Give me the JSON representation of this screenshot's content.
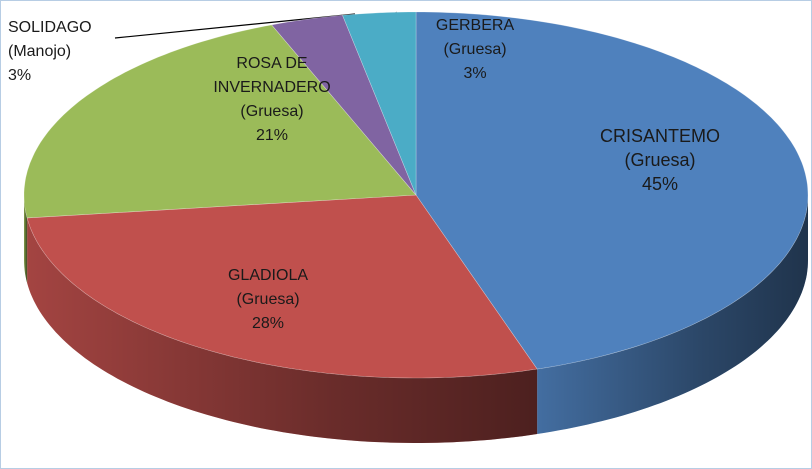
{
  "chart_data": {
    "type": "pie3d",
    "categories": [
      "CRISANTEMO\n(Gruesa)",
      "GLADIOLA\n(Gruesa)",
      "ROSA DE\nINVERNADERO\n(Gruesa)",
      "SOLIDAGO\n(Manojo)",
      "GERBERA\n(Gruesa)"
    ],
    "values": [
      45,
      28,
      21,
      3,
      3
    ],
    "value_labels": [
      "45%",
      "28%",
      "21%",
      "3%",
      "3%"
    ],
    "colors": [
      "#4f81bd",
      "#c0504d",
      "#9bbb59",
      "#8064a2",
      "#4bacc6"
    ]
  }
}
